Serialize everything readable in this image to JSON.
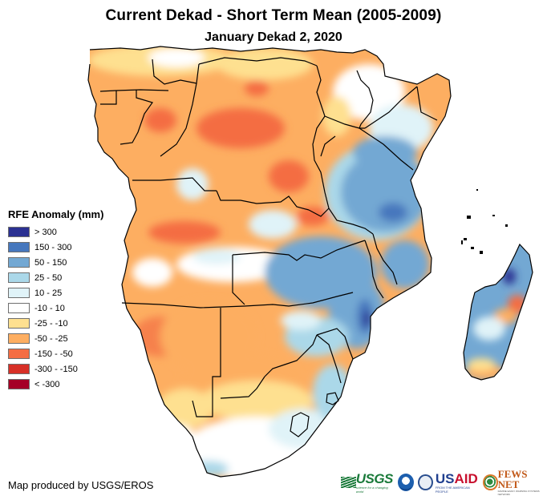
{
  "title": "Current Dekad - Short Term Mean (2005-2009)",
  "subtitle": "January Dekad 2, 2020",
  "legend": {
    "title": "RFE Anomaly (mm)",
    "classes": [
      {
        "label": "> 300",
        "color": "#2b3192"
      },
      {
        "label": "150 - 300",
        "color": "#4677bd"
      },
      {
        "label": "50 - 150",
        "color": "#73a8d3"
      },
      {
        "label": "25 - 50",
        "color": "#abd8e9"
      },
      {
        "label": "10 - 25",
        "color": "#e0f3f8"
      },
      {
        "label": "-10 - 10",
        "color": "#ffffff"
      },
      {
        "label": "-25 - -10",
        "color": "#fee090"
      },
      {
        "label": "-50 - -25",
        "color": "#fdae61"
      },
      {
        "label": "-150 - -50",
        "color": "#f46d43"
      },
      {
        "label": "-300 - -150",
        "color": "#d73027"
      },
      {
        "label": "< -300",
        "color": "#a50026"
      }
    ]
  },
  "credit": "Map produced by USGS/EROS",
  "logos": {
    "usgs": {
      "name": "USGS",
      "tagline": "science for a changing world"
    },
    "noaa": {
      "name": "NOAA"
    },
    "usaid": {
      "us": "US",
      "aid": "AID",
      "tagline": "FROM THE AMERICAN PEOPLE"
    },
    "fewsnet": {
      "name": "FEWS NET",
      "tagline": "FAMINE EARLY WARNING SYSTEMS NETWORK"
    }
  },
  "map": {
    "region": "Central, Eastern and Southern Africa",
    "dominant_pattern": {
      "west_central": "-50 - -25",
      "east_africa_tanzania_mozambique": "50 - 150",
      "southern_africa_interior": "-25 - -10",
      "madagascar": "50 - 150"
    }
  }
}
